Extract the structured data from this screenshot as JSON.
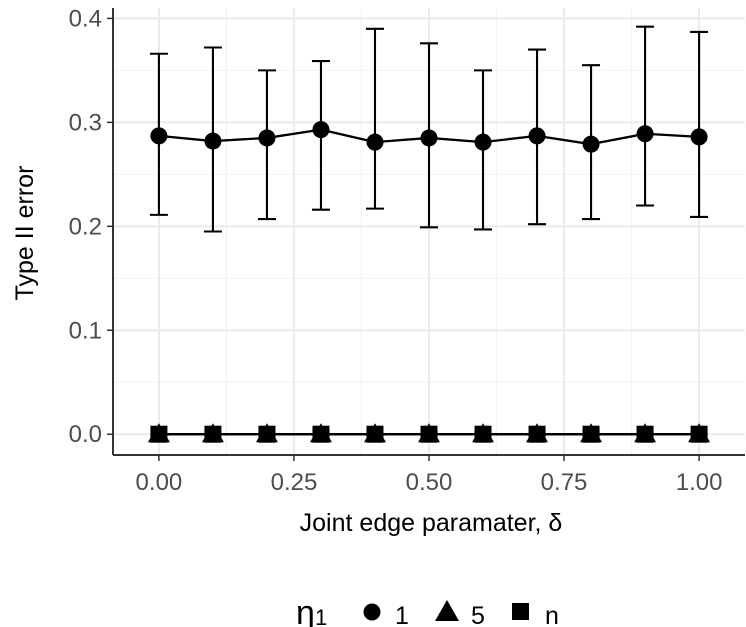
{
  "chart_data": {
    "type": "line",
    "xlabel": "Joint edge paramater, δ",
    "ylabel": "Type II error",
    "xlim": [
      -0.085,
      1.085
    ],
    "ylim": [
      -0.02,
      0.41
    ],
    "x_ticks": [
      0.0,
      0.25,
      0.5,
      0.75,
      1.0
    ],
    "x_tick_labels": [
      "0.00",
      "0.25",
      "0.50",
      "0.75",
      "1.00"
    ],
    "y_ticks": [
      0.0,
      0.1,
      0.2,
      0.3,
      0.4
    ],
    "y_tick_labels": [
      "0.0",
      "0.1",
      "0.2",
      "0.3",
      "0.4"
    ],
    "x": [
      0.0,
      0.1,
      0.2,
      0.3,
      0.4,
      0.5,
      0.6,
      0.7,
      0.8,
      0.9,
      1.0
    ],
    "grid": true,
    "legend_position": "bottom",
    "legend": {
      "title_main": "η",
      "title_sub": "1"
    },
    "series": [
      {
        "name": "1",
        "marker": "circle",
        "values": [
          0.287,
          0.282,
          0.285,
          0.293,
          0.281,
          0.285,
          0.281,
          0.287,
          0.279,
          0.289,
          0.286
        ],
        "error_low": [
          0.211,
          0.195,
          0.207,
          0.216,
          0.217,
          0.199,
          0.197,
          0.202,
          0.207,
          0.22,
          0.209
        ],
        "error_high": [
          0.366,
          0.372,
          0.35,
          0.359,
          0.39,
          0.376,
          0.35,
          0.37,
          0.355,
          0.392,
          0.387
        ]
      },
      {
        "name": "5",
        "marker": "triangle",
        "values": [
          0,
          0,
          0,
          0,
          0,
          0,
          0,
          0,
          0,
          0,
          0
        ]
      },
      {
        "name": "n",
        "marker": "square",
        "values": [
          0,
          0,
          0,
          0,
          0,
          0,
          0,
          0,
          0,
          0,
          0
        ]
      }
    ]
  }
}
